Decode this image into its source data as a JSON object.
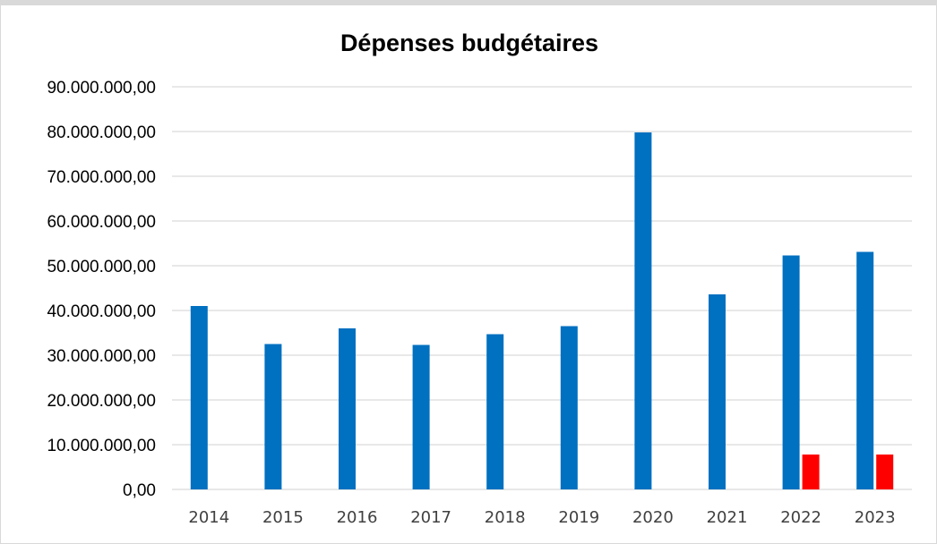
{
  "chart_data": {
    "type": "bar",
    "title": "Dépenses budgétaires",
    "xlabel": "",
    "ylabel": "",
    "ylim": [
      0,
      90000000
    ],
    "y_ticks": [
      "0,00",
      "10.000.000,00",
      "20.000.000,00",
      "30.000.000,00",
      "40.000.000,00",
      "50.000.000,00",
      "60.000.000,00",
      "70.000.000,00",
      "80.000.000,00",
      "90.000.000,00"
    ],
    "categories": [
      "2014",
      "2015",
      "2016",
      "2017",
      "2018",
      "2019",
      "2020",
      "2021",
      "2022",
      "2023"
    ],
    "series": [
      {
        "color": "#0070c0",
        "values": [
          41000000,
          32500000,
          36000000,
          32300000,
          34700000,
          36500000,
          79800000,
          43600000,
          52300000,
          53100000
        ]
      },
      {
        "color": "#ff0000",
        "values": [
          null,
          null,
          null,
          null,
          null,
          null,
          null,
          null,
          7800000,
          7800000
        ]
      }
    ],
    "grid": true,
    "legend": "none"
  }
}
